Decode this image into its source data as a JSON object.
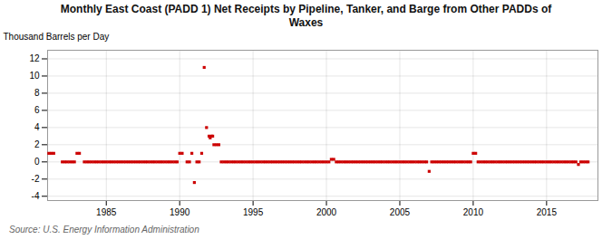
{
  "chart_data": {
    "type": "scatter",
    "title": "Monthly East Coast (PADD 1) Net Receipts by Pipeline, Tanker, and Barge from Other PADDs of\nWaxes",
    "ylabel": "Thousand Barrels per Day",
    "source": "Source: U.S. Energy Information Administration",
    "color": "#cc0000",
    "marker": "square",
    "grid": true,
    "xlim": [
      1981.0,
      2018.5
    ],
    "xticks": [
      1985,
      1990,
      1995,
      2000,
      2005,
      2010,
      2015
    ],
    "ylim": [
      -4.5,
      13
    ],
    "yticks": [
      -4,
      -2,
      0,
      2,
      4,
      6,
      8,
      10,
      12
    ],
    "x": [
      1981.08,
      1981.25,
      1981.42,
      1982.0,
      1982.17,
      1982.33,
      1982.5,
      1982.67,
      1982.83,
      1983.0,
      1983.17,
      1983.5,
      1983.67,
      1983.83,
      1984.0,
      1984.17,
      1984.33,
      1984.5,
      1984.67,
      1984.83,
      1985.0,
      1985.17,
      1985.33,
      1985.5,
      1985.67,
      1985.83,
      1986.0,
      1986.17,
      1986.33,
      1986.5,
      1986.67,
      1986.83,
      1987.0,
      1987.17,
      1987.33,
      1987.5,
      1987.67,
      1987.83,
      1988.0,
      1988.17,
      1988.33,
      1988.5,
      1988.67,
      1988.83,
      1989.0,
      1989.17,
      1989.33,
      1989.5,
      1989.67,
      1989.83,
      1990.0,
      1990.17,
      1990.5,
      1990.67,
      1990.83,
      1991.0,
      1991.17,
      1991.33,
      1991.5,
      1991.67,
      1991.83,
      1992.0,
      1992.08,
      1992.17,
      1992.25,
      1992.33,
      1992.5,
      1992.67,
      1992.83,
      1993.0,
      1993.17,
      1993.33,
      1993.5,
      1993.67,
      1993.83,
      1994.0,
      1994.17,
      1994.33,
      1994.5,
      1994.67,
      1994.83,
      1995.0,
      1995.17,
      1995.33,
      1995.5,
      1995.67,
      1995.83,
      1996.0,
      1996.17,
      1996.33,
      1996.5,
      1996.67,
      1996.83,
      1997.0,
      1997.17,
      1997.33,
      1997.5,
      1997.67,
      1997.83,
      1998.0,
      1998.17,
      1998.33,
      1998.5,
      1998.67,
      1998.83,
      1999.0,
      1999.17,
      1999.33,
      1999.5,
      1999.67,
      1999.83,
      2000.0,
      2000.17,
      2000.33,
      2000.5,
      2000.67,
      2000.83,
      2001.0,
      2001.17,
      2001.33,
      2001.5,
      2001.67,
      2001.83,
      2002.0,
      2002.17,
      2002.33,
      2002.5,
      2002.67,
      2002.83,
      2003.0,
      2003.17,
      2003.33,
      2003.5,
      2003.67,
      2003.83,
      2004.0,
      2004.17,
      2004.33,
      2004.5,
      2004.67,
      2004.83,
      2005.0,
      2005.17,
      2005.33,
      2005.5,
      2005.67,
      2005.83,
      2006.0,
      2006.17,
      2006.33,
      2006.5,
      2006.67,
      2006.83,
      2007.0,
      2007.17,
      2007.33,
      2007.5,
      2007.67,
      2007.83,
      2008.0,
      2008.17,
      2008.33,
      2008.5,
      2008.67,
      2008.83,
      2009.0,
      2009.17,
      2009.33,
      2009.5,
      2009.67,
      2009.83,
      2010.0,
      2010.17,
      2010.33,
      2010.5,
      2010.67,
      2010.83,
      2011.0,
      2011.17,
      2011.33,
      2011.5,
      2011.67,
      2011.83,
      2012.0,
      2012.17,
      2012.33,
      2012.5,
      2012.67,
      2012.83,
      2013.0,
      2013.17,
      2013.33,
      2013.5,
      2013.67,
      2013.83,
      2014.0,
      2014.17,
      2014.33,
      2014.5,
      2014.67,
      2014.83,
      2015.0,
      2015.17,
      2015.33,
      2015.5,
      2015.67,
      2015.83,
      2016.0,
      2016.17,
      2016.33,
      2016.5,
      2016.67,
      2016.83,
      2017.0,
      2017.17,
      2017.33,
      2017.5,
      2017.67,
      2017.83
    ],
    "values": [
      1.0,
      1.0,
      1.0,
      0.0,
      0.0,
      0.0,
      0.0,
      0.0,
      0.0,
      1.0,
      1.0,
      0.0,
      0.0,
      0.0,
      0.0,
      0.0,
      0.0,
      0.0,
      0.0,
      0.0,
      0.0,
      0.0,
      0.0,
      0.0,
      0.0,
      0.0,
      0.0,
      0.0,
      0.0,
      0.0,
      0.0,
      0.0,
      0.0,
      0.0,
      0.0,
      0.0,
      0.0,
      0.0,
      0.0,
      0.0,
      0.0,
      0.0,
      0.0,
      0.0,
      0.0,
      0.0,
      0.0,
      0.0,
      0.0,
      0.0,
      1.0,
      1.0,
      0.0,
      0.0,
      1.0,
      -2.4,
      0.0,
      0.0,
      1.0,
      11.0,
      4.0,
      3.0,
      2.8,
      3.0,
      3.0,
      2.0,
      2.0,
      2.0,
      0.0,
      0.0,
      0.0,
      0.0,
      0.0,
      0.0,
      0.0,
      0.0,
      0.0,
      0.0,
      0.0,
      0.0,
      0.0,
      0.0,
      0.0,
      0.0,
      0.0,
      0.0,
      0.0,
      0.0,
      0.0,
      0.0,
      0.0,
      0.0,
      0.0,
      0.0,
      0.0,
      0.0,
      0.0,
      0.0,
      0.0,
      0.0,
      0.0,
      0.0,
      0.0,
      0.0,
      0.0,
      0.0,
      0.0,
      0.0,
      0.0,
      0.0,
      0.0,
      0.0,
      0.0,
      0.3,
      0.3,
      0.0,
      0.0,
      0.0,
      0.0,
      0.0,
      0.0,
      0.0,
      0.0,
      0.0,
      0.0,
      0.0,
      0.0,
      0.0,
      0.0,
      0.0,
      0.0,
      0.0,
      0.0,
      0.0,
      0.0,
      0.0,
      0.0,
      0.0,
      0.0,
      0.0,
      0.0,
      0.0,
      0.0,
      0.0,
      0.0,
      0.0,
      0.0,
      0.0,
      0.0,
      0.0,
      0.0,
      0.0,
      0.0,
      -1.1,
      0.0,
      0.0,
      0.0,
      0.0,
      0.0,
      0.0,
      0.0,
      0.0,
      0.0,
      0.0,
      0.0,
      0.0,
      0.0,
      0.0,
      0.0,
      0.0,
      0.0,
      1.0,
      1.0,
      0.0,
      0.0,
      0.0,
      0.0,
      0.0,
      0.0,
      0.0,
      0.0,
      0.0,
      0.0,
      0.0,
      0.0,
      0.0,
      0.0,
      0.0,
      0.0,
      0.0,
      0.0,
      0.0,
      0.0,
      0.0,
      0.0,
      0.0,
      0.0,
      0.0,
      0.0,
      0.0,
      0.0,
      0.0,
      0.0,
      0.0,
      0.0,
      0.0,
      0.0,
      0.0,
      0.0,
      0.0,
      0.0,
      0.0,
      0.0,
      0.0,
      -0.3,
      0.0,
      0.0,
      0.0,
      0.0
    ]
  }
}
